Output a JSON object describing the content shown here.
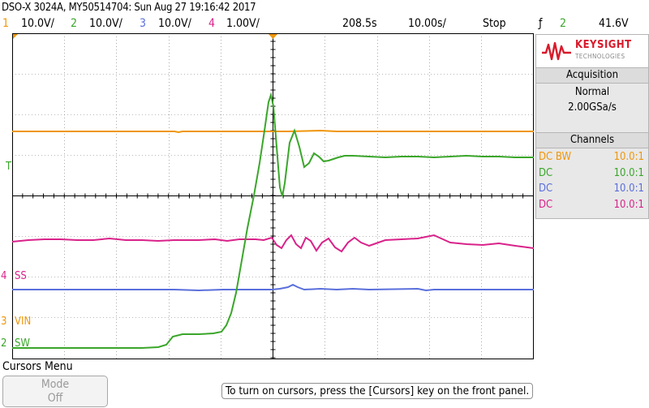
{
  "title": "DSO-X 3024A, MY50514704: Sun Aug 27 19:16:42 2017",
  "channels_bar": {
    "ch1_num": "1",
    "ch1_scale": "10.0V/",
    "ch2_num": "2",
    "ch2_scale": "10.0V/",
    "ch3_num": "3",
    "ch3_scale": "10.0V/",
    "ch4_num": "4",
    "ch4_scale": "1.00V/"
  },
  "timebase": {
    "delay": "208.5s",
    "scale": "10.00s/",
    "run_state": "Stop"
  },
  "trigger": {
    "icon": "trigger-edge-icon",
    "glyph": "ƒ",
    "source": "2",
    "level": "41.6V"
  },
  "brand": {
    "name": "KEYSIGHT",
    "sub": "TECHNOLOGIES"
  },
  "acquisition": {
    "header": "Acquisition",
    "mode": "Normal",
    "rate": "2.00GSa/s"
  },
  "channels_panel": {
    "header": "Channels",
    "rows": [
      {
        "coupling": "DC BW",
        "probe": "10.0:1",
        "color": "#f0960a"
      },
      {
        "coupling": "DC",
        "probe": "10.0:1",
        "color": "#3aa62a"
      },
      {
        "coupling": "DC",
        "probe": "10.0:1",
        "color": "#5a6fdc"
      },
      {
        "coupling": "DC",
        "probe": "10.0:1",
        "color": "#d9228a"
      }
    ]
  },
  "labels": {
    "ss": "SS",
    "ss_num": "4",
    "vin": "VIN",
    "vin_num": "3",
    "sw": "SW",
    "sw_num": "2",
    "trig_marker": "T"
  },
  "softkeys": {
    "menu_title": "Cursors Menu",
    "mode_label": "Mode",
    "mode_value": "Off"
  },
  "message": "To turn on cursors, press the [Cursors] key on the front panel.",
  "colors": {
    "ch1": "#f0960a",
    "ch2": "#3aa62a",
    "ch3": "#5a6fdc",
    "ch4": "#d9228a",
    "grid": "#000000"
  }
}
